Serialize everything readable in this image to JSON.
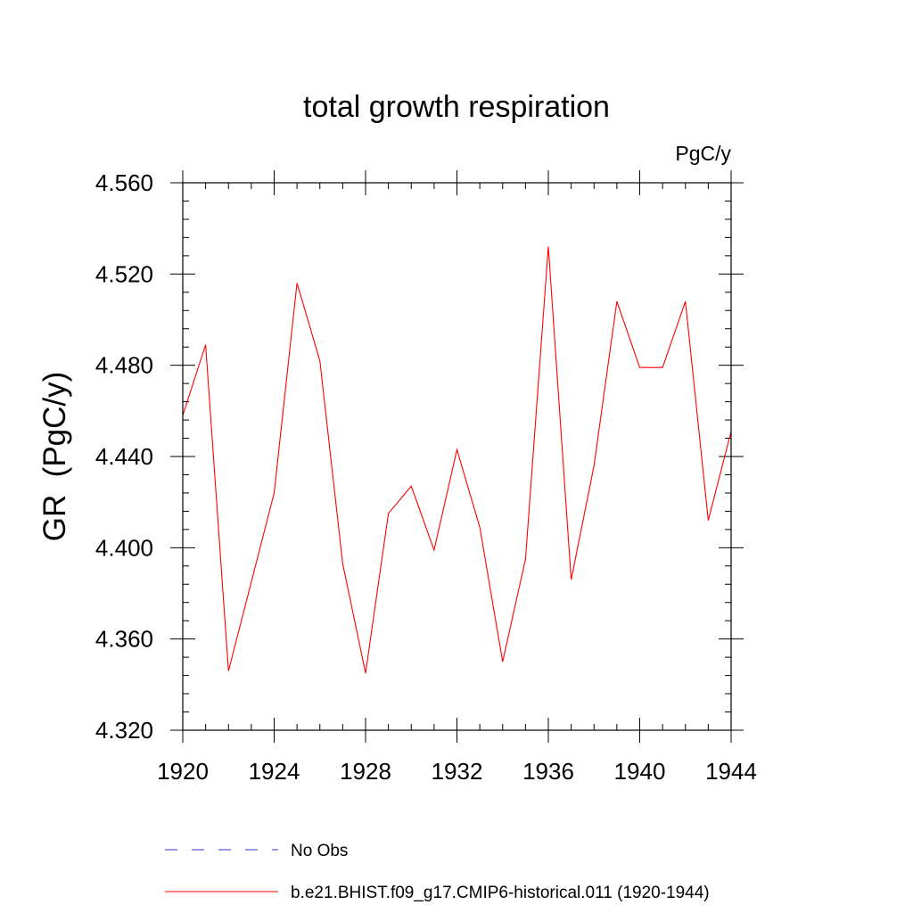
{
  "chart_data": {
    "type": "line",
    "title": "total growth respiration",
    "units_label": "PgC/y",
    "ylabel": "GR  (PgC/y)",
    "xlabel": "",
    "xlim": [
      1920,
      1944
    ],
    "ylim": [
      4.32,
      4.56
    ],
    "x_ticks": [
      1920,
      1924,
      1928,
      1932,
      1936,
      1940,
      1944
    ],
    "x_tick_labels": [
      "1920",
      "1924",
      "1928",
      "1932",
      "1936",
      "1940",
      "1944"
    ],
    "y_ticks": [
      4.32,
      4.36,
      4.4,
      4.44,
      4.48,
      4.52,
      4.56
    ],
    "y_tick_labels": [
      "4.320",
      "4.360",
      "4.400",
      "4.440",
      "4.480",
      "4.520",
      "4.560"
    ],
    "grid": false,
    "legend_placement": "bottom",
    "legend": [
      {
        "name": "No Obs",
        "color": "#3333cc",
        "style": "dashed"
      },
      {
        "name": "b.e21.BHIST.f09_g17.CMIP6-historical.011 (1920-1944)",
        "color": "#ff0000",
        "style": "solid"
      }
    ],
    "series": [
      {
        "name": "b.e21.BHIST.f09_g17.CMIP6-historical.011 (1920-1944)",
        "color": "#ff0000",
        "x": [
          1920,
          1921,
          1922,
          1923,
          1924,
          1925,
          1926,
          1927,
          1928,
          1929,
          1930,
          1931,
          1932,
          1933,
          1934,
          1935,
          1936,
          1937,
          1938,
          1939,
          1940,
          1941,
          1942,
          1943,
          1944
        ],
        "y": [
          4.458,
          4.489,
          4.346,
          4.385,
          4.424,
          4.516,
          4.482,
          4.393,
          4.345,
          4.415,
          4.427,
          4.399,
          4.443,
          4.409,
          4.35,
          4.395,
          4.532,
          4.386,
          4.436,
          4.508,
          4.479,
          4.479,
          4.508,
          4.412,
          4.451
        ]
      }
    ]
  }
}
